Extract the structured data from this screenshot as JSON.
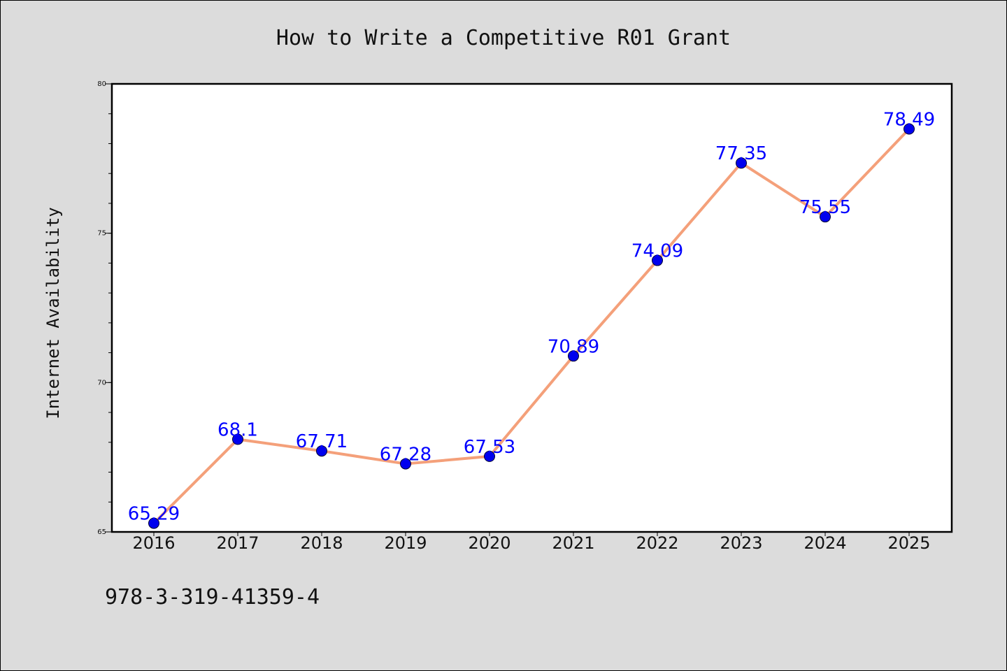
{
  "chart_data": {
    "type": "line",
    "title": "How to Write a Competitive R01 Grant",
    "xlabel": "",
    "ylabel": "Internet Availability",
    "categories": [
      "2016",
      "2017",
      "2018",
      "2019",
      "2020",
      "2021",
      "2022",
      "2023",
      "2024",
      "2025"
    ],
    "series": [
      {
        "values": [
          65.29,
          68.1,
          67.71,
          67.28,
          67.53,
          70.89,
          74.09,
          77.35,
          75.55,
          78.49
        ],
        "labels": [
          "65.29",
          "68.1",
          "67.71",
          "67.28",
          "67.53",
          "70.89",
          "74.09",
          "77.35",
          "75.55",
          "78.49"
        ]
      }
    ],
    "ylim": [
      65,
      80
    ],
    "yticks": [
      "65",
      "70",
      "75",
      "80"
    ],
    "grid": false,
    "legend": "none",
    "colors": {
      "line": "#f4a07a",
      "marker": "#0000ee",
      "data_label": "#0000ff",
      "plot_background": "#ffffff",
      "figure_background": "#dcdcdc"
    }
  },
  "footer": {
    "text": "978-3-319-41359-4"
  }
}
